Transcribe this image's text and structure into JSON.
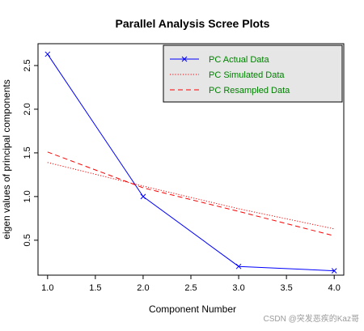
{
  "chart_data": {
    "type": "line",
    "title": "Parallel Analysis Scree Plots",
    "xlabel": "Component Number",
    "ylabel": "eigen values of principal components",
    "x": [
      1,
      2,
      3,
      4
    ],
    "xlim": [
      0.9,
      4.1
    ],
    "ylim": [
      0.1,
      2.75
    ],
    "xticks": [
      1.0,
      1.5,
      2.0,
      2.5,
      3.0,
      3.5,
      4.0
    ],
    "yticks": [
      0.5,
      1.0,
      1.5,
      2.0,
      2.5
    ],
    "grid": false,
    "legend_position": "top-right",
    "series": [
      {
        "name": "PC  Actual Data",
        "values": [
          2.63,
          1.0,
          0.2,
          0.15
        ],
        "color": "#0000ff",
        "line_style": "solid",
        "marker": "x"
      },
      {
        "name": "PC  Simulated Data",
        "values": [
          1.39,
          1.12,
          0.86,
          0.63
        ],
        "color": "#ff0000",
        "line_style": "dotted",
        "marker": "none"
      },
      {
        "name": "PC  Resampled Data",
        "values": [
          1.51,
          1.1,
          0.83,
          0.55
        ],
        "color": "#ff0000",
        "line_style": "dashed",
        "marker": "none"
      }
    ]
  },
  "legend": {
    "background": "#e6e6e6",
    "text_color": "#008000"
  },
  "watermark": {
    "text": "CSDN @突发恶疾的Kaz哥"
  }
}
